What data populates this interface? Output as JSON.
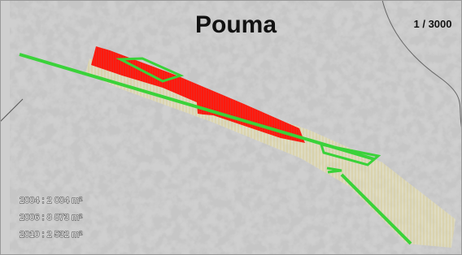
{
  "map": {
    "title": "Pouma",
    "scale": "1 / 3000",
    "legend": [
      "2004 : 2 004 m²",
      "2006 : 8 873 m²",
      "2010 : 2 532 m²"
    ]
  }
}
